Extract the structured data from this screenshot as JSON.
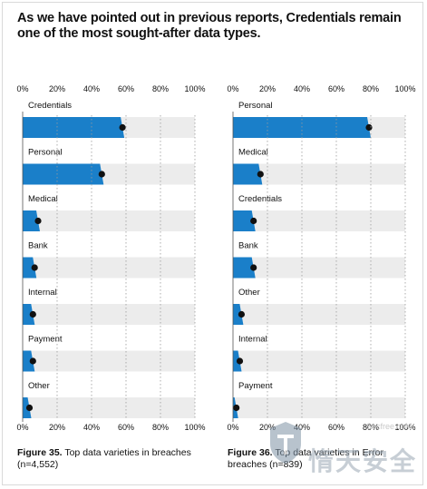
{
  "headline": "As we have pointed out in previous reports, Credentials remain one of the most sought-after data types.",
  "colors": {
    "bar": "#1a7fc9",
    "track": "#ececec",
    "marker": "#111111",
    "grid": "#9a9a9a",
    "text": "#111111"
  },
  "chart_data": [
    {
      "type": "bar",
      "orientation": "horizontal",
      "categories": [
        "Credentials",
        "Personal",
        "Medical",
        "Bank",
        "Internal",
        "Payment",
        "Other"
      ],
      "values": [
        59,
        47,
        10,
        8,
        7,
        7,
        5
      ],
      "xlim": [
        0,
        100
      ],
      "ticks": [
        "0%",
        "20%",
        "40%",
        "60%",
        "80%",
        "100%"
      ],
      "tick_values": [
        0,
        20,
        40,
        60,
        80,
        100
      ],
      "grid": true,
      "caption_label": "Figure 35.",
      "caption_text": "Top data varieties in breaches (n=4,552)"
    },
    {
      "type": "bar",
      "orientation": "horizontal",
      "categories": [
        "Personal",
        "Medical",
        "Credentials",
        "Bank",
        "Other",
        "Internal",
        "Payment"
      ],
      "values": [
        80,
        17,
        13,
        13,
        6,
        5,
        3
      ],
      "xlim": [
        0,
        100
      ],
      "ticks": [
        "0%",
        "20%",
        "40%",
        "60%",
        "80%",
        "100%"
      ],
      "tick_values": [
        0,
        20,
        40,
        60,
        80,
        100
      ],
      "grid": true,
      "caption_label": "Figure 36.",
      "caption_text": "Top data varieties in Error breaches (n=839)"
    }
  ],
  "watermark": {
    "site": "Secfree.coM",
    "text": "惰天安全"
  }
}
